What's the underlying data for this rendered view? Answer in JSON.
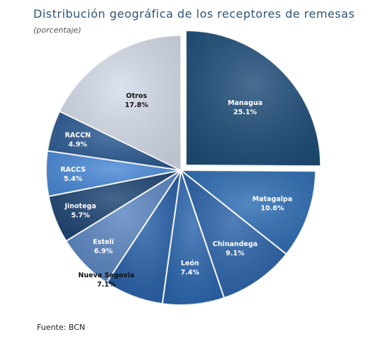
{
  "title": "Distribución geográfica de los receptores de remesas",
  "subtitle": "(porcentaje)",
  "source": "Fuente: BCN",
  "chart_data": {
    "type": "pie",
    "title": "Distribución geográfica de los receptores de remesas",
    "subtitle": "(porcentaje)",
    "unit": "%",
    "legend": "none",
    "slices": [
      {
        "label": "Managua",
        "value": 25.1,
        "display": "25.1%",
        "color": "#1f4e79",
        "exploded": true
      },
      {
        "label": "Matagalpa",
        "value": 10.6,
        "display": "10.6%",
        "color": "#2e6db4"
      },
      {
        "label": "Chinandega",
        "value": 9.1,
        "display": "9.1%",
        "color": "#2a62a8"
      },
      {
        "label": "León",
        "value": 7.4,
        "display": "7.4%",
        "color": "#2b66ae"
      },
      {
        "label": "Nueva Segovia",
        "value": 7.1,
        "display": "7.1%",
        "color": "#2760a8"
      },
      {
        "label": "Estelí",
        "value": 6.9,
        "display": "6.9%",
        "color": "#5b86c2"
      },
      {
        "label": "Jinotega",
        "value": 5.7,
        "display": "5.7%",
        "color": "#1d4472"
      },
      {
        "label": "RACCS",
        "value": 5.4,
        "display": "5.4%",
        "color": "#4a8ad8"
      },
      {
        "label": "RACCN",
        "value": 4.9,
        "display": "4.9%",
        "color": "#2b5a92"
      },
      {
        "label": "Otros",
        "value": 17.8,
        "display": "17.8%",
        "color": "#d4dcea"
      }
    ]
  }
}
